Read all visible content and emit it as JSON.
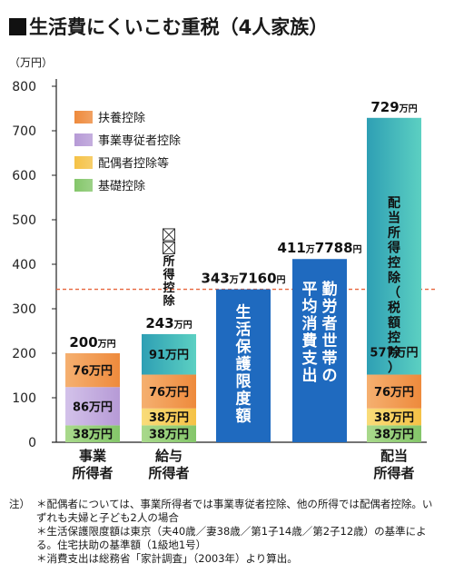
{
  "title": "生活費にくいこむ重税（4人家族）",
  "unit_label": "（万円）",
  "colors": {
    "fuyou": "#ee8a3c",
    "jigyo": "#b69ad6",
    "haigusha": "#f5c246",
    "kiso": "#84c66a",
    "blue": "#1f6abf",
    "teal": "#33b8b0",
    "dashed": "#e8643c",
    "axis": "#222222"
  },
  "legend": [
    {
      "label": "扶養控除",
      "color_key": "fuyou"
    },
    {
      "label": "事業専従者控除",
      "color_key": "jigyo"
    },
    {
      "label": "配偶者控除等",
      "color_key": "haigusha"
    },
    {
      "label": "基礎控除",
      "color_key": "kiso"
    }
  ],
  "chart_data": {
    "type": "bar",
    "ylim": [
      0,
      800
    ],
    "yticks": [
      0,
      100,
      200,
      300,
      400,
      500,
      600,
      700,
      800
    ],
    "reference_line": 343.716,
    "categories": [
      "事業\n所得者",
      "給与\n所得者",
      "",
      "",
      "配当\n所得者"
    ],
    "bars": [
      {
        "category": "事業\n所得者",
        "total_label": "200万円",
        "segments": [
          {
            "value": 38,
            "label": "38万円",
            "color_key": "kiso"
          },
          {
            "value": 86,
            "label": "86万円",
            "color_key": "jigyo"
          },
          {
            "value": 76,
            "label": "76万円",
            "color_key": "fuyou"
          }
        ]
      },
      {
        "category": "給与\n所得者",
        "total_label": "243万円",
        "segments": [
          {
            "value": 38,
            "label": "38万円",
            "color_key": "kiso"
          },
          {
            "value": 38,
            "label": "38万円",
            "color_key": "haigusha"
          },
          {
            "value": 76,
            "label": "76万円",
            "color_key": "fuyou"
          },
          {
            "value": 91,
            "label": "91万円",
            "color_key": "teal"
          }
        ],
        "top_annotation": "給与所得控除"
      },
      {
        "category": "",
        "total_label": "343万7160円",
        "segments": [
          {
            "value": 343.716,
            "label": "生活保護限度額",
            "color_key": "blue",
            "vertical": true
          }
        ]
      },
      {
        "category": "",
        "total_label": "411万7788円",
        "segments": [
          {
            "value": 411.7788,
            "label": "勤労者世帯の平均消費支出",
            "color_key": "blue",
            "vertical": true
          }
        ]
      },
      {
        "category": "配当\n所得者",
        "total_label": "729万円",
        "segments": [
          {
            "value": 38,
            "label": "38万円",
            "color_key": "kiso"
          },
          {
            "value": 38,
            "label": "38万円",
            "color_key": "haigusha"
          },
          {
            "value": 76,
            "label": "76万円",
            "color_key": "fuyou"
          },
          {
            "value": 577,
            "label": "577万円",
            "color_key": "teal",
            "vertical_caption": "配当所得控除（税額控除）"
          }
        ]
      }
    ]
  },
  "notes": [
    {
      "head": "注）",
      "text": "＊配偶者については、事業所得者では事業専従者控除、他の所得では配偶者控除。いずれも夫婦と子ども2人の場合"
    },
    {
      "head": "",
      "text": "＊生活保護限度額は東京（夫40歳／妻38歳／第1子14歳／第2子12歳）の基準による。住宅扶助の基準額（1級地1号）"
    },
    {
      "head": "",
      "text": "＊消費支出は総務省「家計調査」（2003年）より算出。"
    }
  ]
}
